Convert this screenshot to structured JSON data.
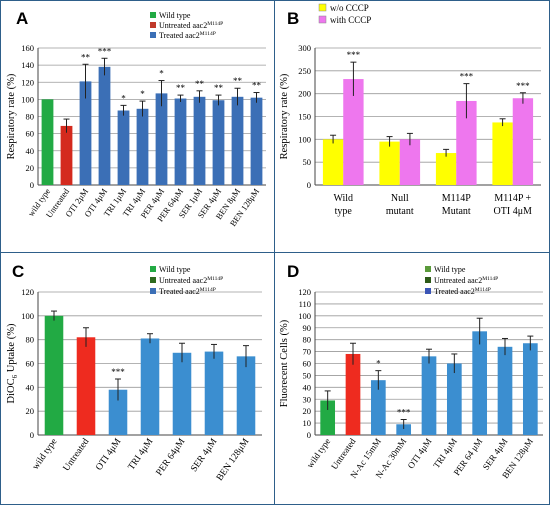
{
  "chart_data": [
    {
      "id": "A",
      "type": "bar",
      "panel_label": "A",
      "ylabel": "Respiratory rate (%)",
      "ylim": [
        0,
        160
      ],
      "yticks": [
        0,
        20,
        40,
        60,
        80,
        100,
        120,
        140,
        160
      ],
      "grid": true,
      "legend_position": "top-right",
      "legend": [
        {
          "label": "Wild type",
          "color": "#22aa44"
        },
        {
          "label": "Untreated aac2",
          "sup": "M114P",
          "color": "#c0392b"
        },
        {
          "label": "Treated aac2",
          "sup": "M114P",
          "color": "#3b6fb6"
        }
      ],
      "categories": [
        "wild type",
        "Untreated",
        "OTI 2μM",
        "OTI 4μM",
        "TRI 1μM",
        "TRI 4μM",
        "PER 4μM",
        "PER 64μM",
        "SER 1μM",
        "SER 4μM",
        "BEN 8μM",
        "BEN 128μM"
      ],
      "values": [
        100,
        69,
        121,
        138,
        87,
        89,
        107,
        101,
        103,
        99,
        103,
        102
      ],
      "errors": [
        0,
        8,
        20,
        10,
        6,
        9,
        15,
        4,
        7,
        6,
        10,
        6
      ],
      "colors": [
        "#22aa44",
        "#d42a1e",
        "#3b6fb6",
        "#3b6fb6",
        "#3b6fb6",
        "#3b6fb6",
        "#3b6fb6",
        "#3b6fb6",
        "#3b6fb6",
        "#3b6fb6",
        "#3b6fb6",
        "#3b6fb6"
      ],
      "annotations": [
        "",
        "",
        "**",
        "***",
        "*",
        "*",
        "*",
        "**",
        "**",
        "**",
        "**",
        "**"
      ]
    },
    {
      "id": "B",
      "type": "bar",
      "panel_label": "B",
      "ylabel": "Respiratory rate (%)",
      "ylim": [
        0,
        300
      ],
      "yticks": [
        0,
        50,
        100,
        150,
        200,
        250,
        300
      ],
      "grid": true,
      "legend_position": "top-left",
      "categories": [
        "Wild type",
        "Null mutant",
        "M114P Mutant",
        "M114P + OTI 4μM"
      ],
      "series": [
        {
          "name": "w/o CCCP",
          "color": "#ffff00",
          "values": [
            100,
            95,
            70,
            137
          ],
          "errors": [
            9,
            11,
            8,
            8
          ]
        },
        {
          "name": "with CCCP",
          "color": "#ee77ee",
          "values": [
            232,
            100,
            184,
            190
          ],
          "errors": [
            37,
            13,
            38,
            12
          ]
        }
      ],
      "annotations": [
        "***",
        "",
        "***",
        "***"
      ]
    },
    {
      "id": "C",
      "type": "bar",
      "panel_label": "C",
      "ylabel_main": "DiOC",
      "ylabel_sub": "6",
      "ylabel_tail": " Uptake (%)",
      "ylim": [
        0,
        120
      ],
      "yticks": [
        0,
        20,
        40,
        60,
        80,
        100,
        120
      ],
      "grid": true,
      "legend_position": "top-right",
      "legend": [
        {
          "label": "Wild type",
          "color": "#22aa44"
        },
        {
          "label": "Untreated aac2",
          "sup": "M114P",
          "color": "#2d6a1f"
        },
        {
          "label": "Treated aac2",
          "sup": "M114P",
          "color": "#3b6fb6"
        }
      ],
      "categories": [
        "wild type",
        "Untreated",
        "OTI 4μM",
        "TRI 4μM",
        "PER 64μM",
        "SER 4μM",
        "BEN 128μM"
      ],
      "values": [
        100,
        82,
        38,
        81,
        69,
        70,
        66
      ],
      "errors": [
        4,
        8,
        9,
        4,
        8,
        6,
        9
      ],
      "colors": [
        "#22aa44",
        "#ee2b1f",
        "#3b8ed0",
        "#3b8ed0",
        "#3b8ed0",
        "#3b8ed0",
        "#3b8ed0"
      ],
      "annotations": [
        "",
        "",
        "***",
        "",
        "",
        "",
        ""
      ]
    },
    {
      "id": "D",
      "type": "bar",
      "panel_label": "D",
      "ylabel": "Fluorecent Cells (%)",
      "ylim": [
        0,
        120
      ],
      "yticks": [
        0,
        10,
        20,
        30,
        40,
        50,
        60,
        70,
        80,
        90,
        100,
        110,
        120
      ],
      "grid": true,
      "legend_position": "top-right",
      "legend": [
        {
          "label": "Wild type",
          "color": "#5a9a3a"
        },
        {
          "label": "Untreated aac2",
          "sup": "M114P",
          "color": "#2d5a18"
        },
        {
          "label": "Treated aac2",
          "sup": "M114P",
          "color": "#3b55b6"
        }
      ],
      "categories": [
        "wild type",
        "Untreated",
        "N-Ac 15mM",
        "N-Ac 30mM",
        "OTI 4μM",
        "TRI 4μM",
        "PER 64 μM",
        "SER 4μM",
        "BEN 128μM"
      ],
      "values": [
        29,
        68,
        46,
        9,
        66,
        60,
        87,
        74,
        77
      ],
      "errors": [
        8,
        9,
        8,
        4,
        6,
        8,
        11,
        7,
        6
      ],
      "colors": [
        "#22aa44",
        "#ee2b1f",
        "#3b8ed0",
        "#3b8ed0",
        "#3b8ed0",
        "#3b8ed0",
        "#3b8ed0",
        "#3b8ed0",
        "#3b8ed0"
      ],
      "annotations": [
        "",
        "",
        "*",
        "***",
        "",
        "",
        "",
        "",
        ""
      ]
    }
  ]
}
